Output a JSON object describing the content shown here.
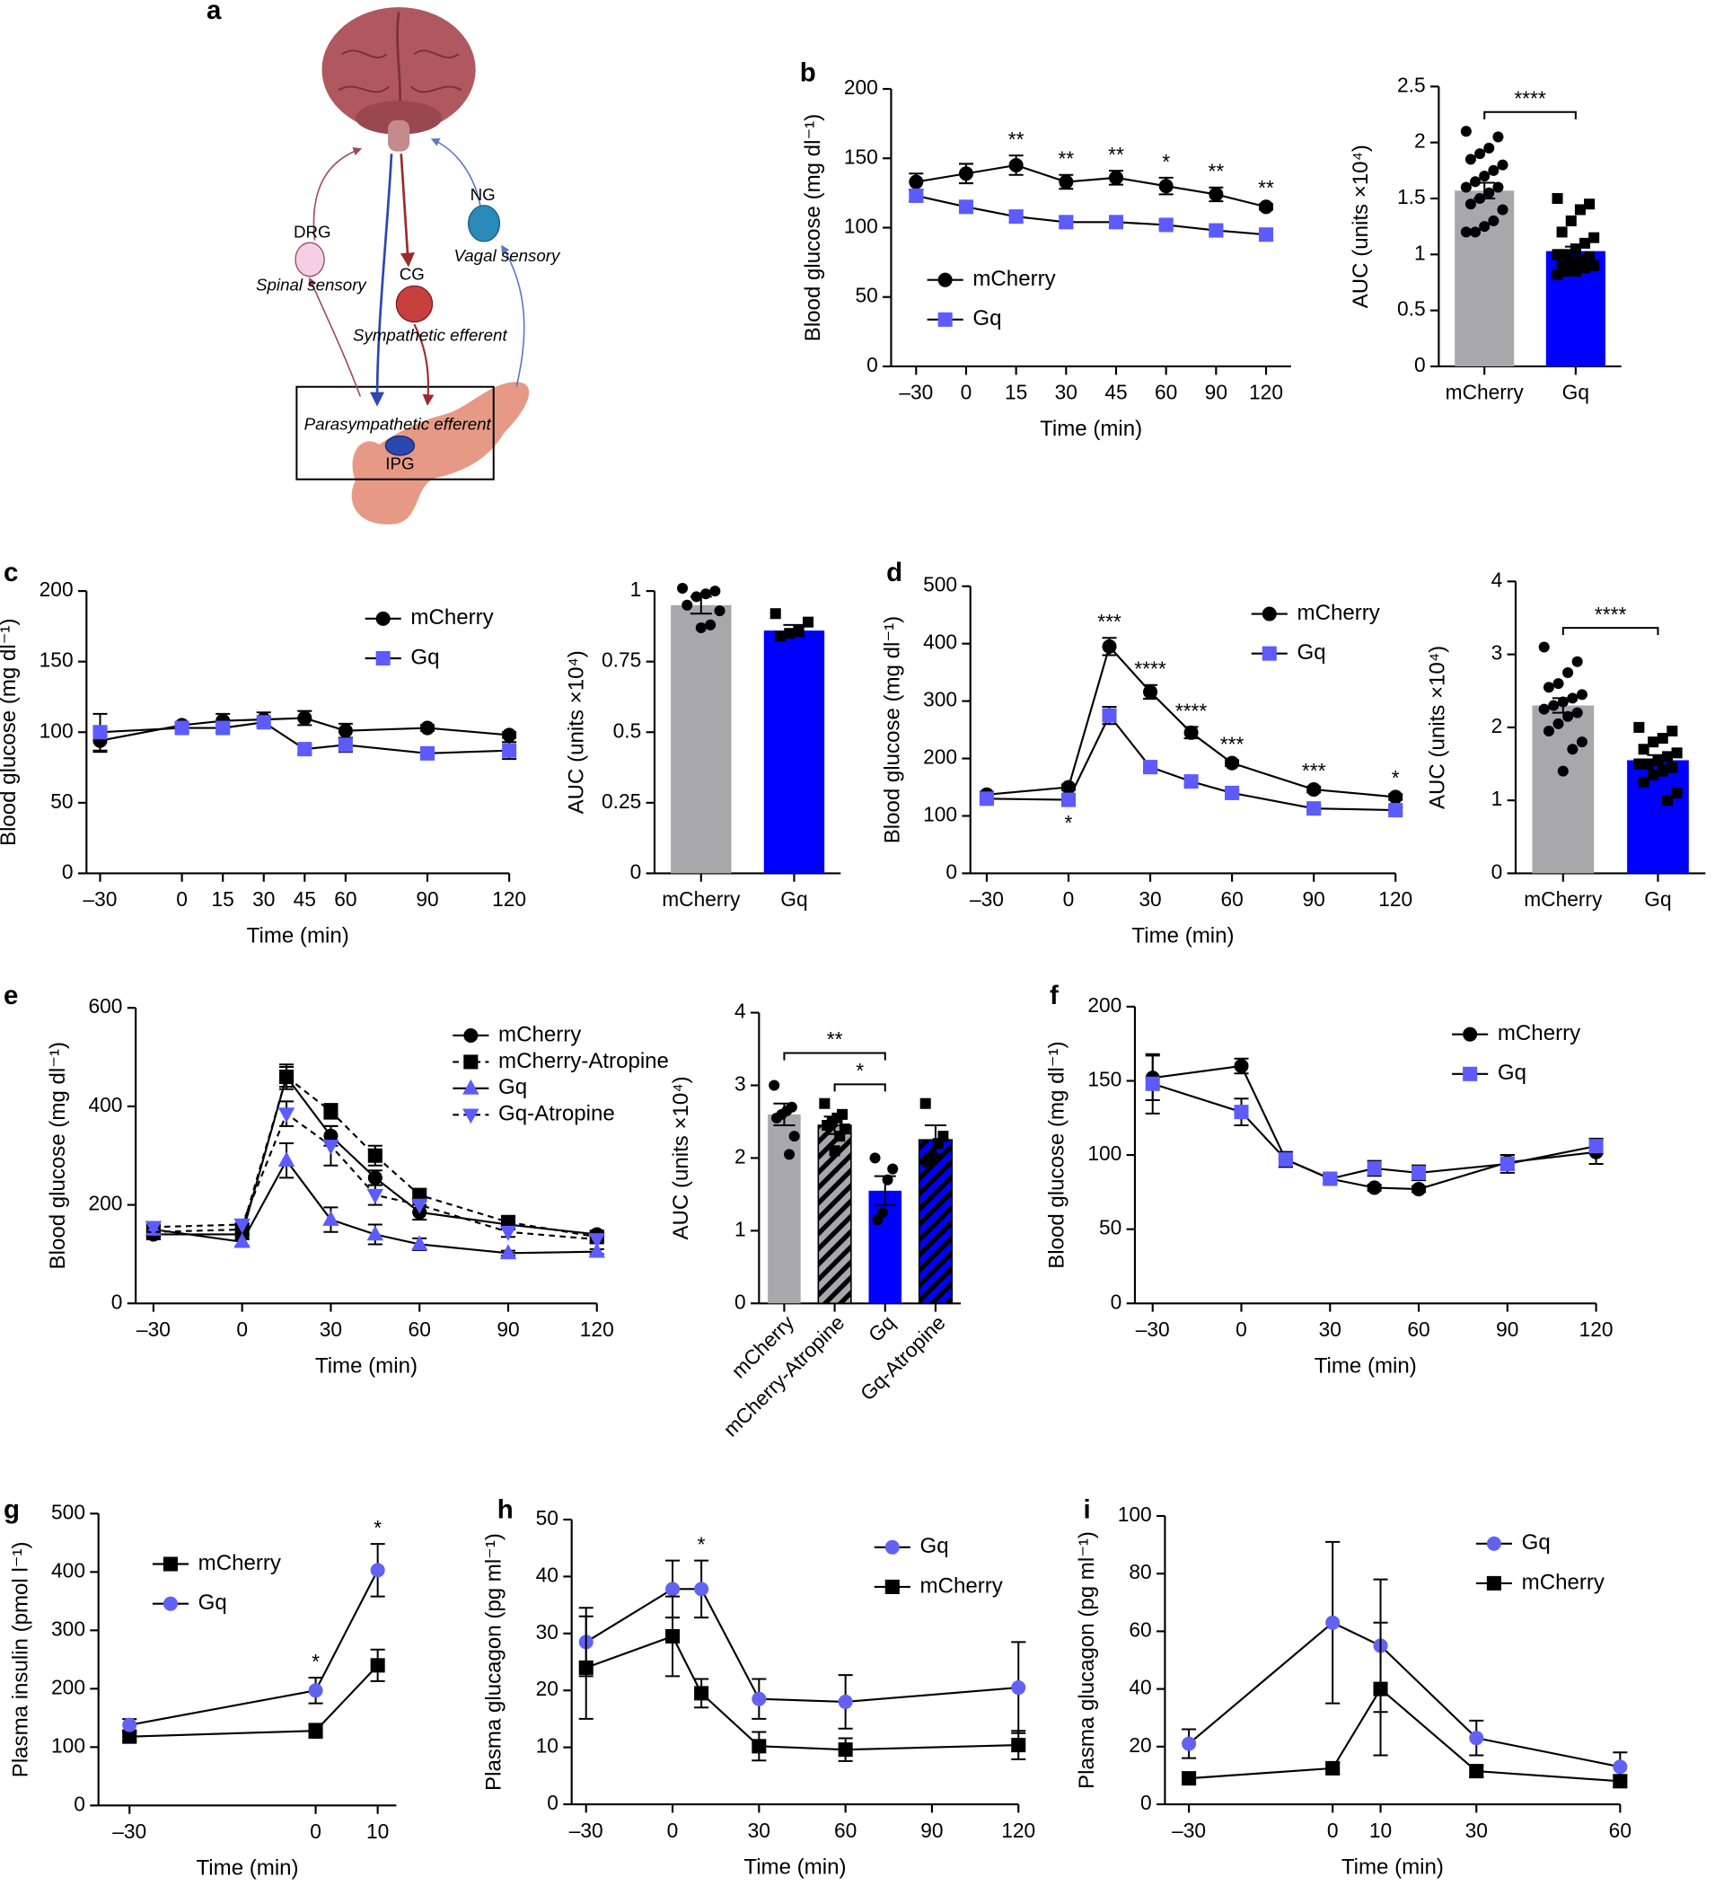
{
  "panels": [
    "a",
    "b",
    "c",
    "d",
    "e",
    "f",
    "g",
    "h",
    "i"
  ],
  "diagram": {
    "drg": "DRG",
    "spinal": "Spinal sensory",
    "cg": "CG",
    "sympathetic": "Sympathetic efferent",
    "ng": "NG",
    "vagal": "Vagal sensory",
    "parasympathetic": "Parasympathetic efferent",
    "ipg": "IPG"
  },
  "chart_data": [
    {
      "type": "line",
      "categories": [
        "–30",
        "0",
        "15",
        "30",
        "45",
        "60",
        "90",
        "120"
      ],
      "ylim": [
        0,
        200
      ],
      "yticks": [
        0,
        50,
        100,
        150,
        200
      ],
      "xlabel": "Time (min)",
      "ylabel": "Blood glucose (mg dl⁻¹)",
      "legend": "lower left",
      "series": [
        {
          "name": "mCherry",
          "color": "#000000",
          "marker": "circle",
          "values": [
            133,
            139,
            145,
            133,
            136,
            130,
            124,
            115
          ],
          "errors": [
            6,
            7,
            7,
            5,
            5,
            6,
            5,
            2
          ],
          "annotations": [
            null,
            null,
            "**",
            "**",
            "**",
            "*",
            "**",
            "**"
          ]
        },
        {
          "name": "Gq",
          "color": "#5b5bff",
          "marker": "square",
          "values": [
            123,
            115,
            108,
            104,
            104,
            102,
            98,
            95
          ],
          "errors": [
            4,
            3,
            4,
            4,
            3,
            3,
            3,
            2
          ]
        }
      ]
    },
    {
      "type": "bar",
      "categories": [
        "mCherry",
        "Gq"
      ],
      "values": [
        1.57,
        1.03
      ],
      "errors": [
        0.07,
        0.04
      ],
      "colors": [
        "#a8a8aa",
        "#0000ff"
      ],
      "point_markers": [
        "circle",
        "square"
      ],
      "points": [
        [
          2.1,
          2.05,
          1.95,
          1.9,
          1.85,
          1.8,
          1.75,
          1.7,
          1.65,
          1.6,
          1.6,
          1.55,
          1.5,
          1.45,
          1.4,
          1.3,
          1.25,
          1.2,
          1.2
        ],
        [
          1.5,
          1.45,
          1.4,
          1.3,
          1.2,
          1.15,
          1.1,
          1.05,
          1.0,
          1.0,
          0.98,
          0.95,
          0.93,
          0.9,
          0.9,
          0.88,
          0.85,
          0.85,
          0.82
        ]
      ],
      "ylim": [
        0,
        2.5
      ],
      "yticks": [
        0,
        0.5,
        1,
        1.5,
        2,
        2.5
      ],
      "ylabel": "AUC (units ×10⁴)",
      "brackets": [
        {
          "from": 0,
          "to": 1,
          "label": "****"
        }
      ]
    },
    {
      "type": "line",
      "x": [
        -30,
        0,
        15,
        30,
        45,
        60,
        90,
        120
      ],
      "xlim": [
        -35,
        120
      ],
      "xticks": [
        {
          "value": -30,
          "label": "–30"
        },
        0,
        15,
        30,
        45,
        60,
        90,
        120
      ],
      "ylim": [
        0,
        200
      ],
      "yticks": [
        0,
        50,
        100,
        150,
        200
      ],
      "xlabel": "Time (min)",
      "ylabel": "Blood glucose (mg dl⁻¹)",
      "legend": "upper right",
      "series": [
        {
          "name": "mCherry",
          "color": "#000000",
          "marker": "circle",
          "values": [
            94,
            105,
            108,
            109,
            110,
            101,
            103,
            98
          ],
          "errors": [
            8,
            2,
            5,
            5,
            5,
            5,
            2,
            2
          ]
        },
        {
          "name": "Gq",
          "color": "#5b5bff",
          "marker": "square",
          "values": [
            100,
            103,
            103,
            107,
            88,
            91,
            85,
            87
          ],
          "errors": [
            13,
            3,
            3,
            3,
            3,
            5,
            2,
            6
          ]
        }
      ]
    },
    {
      "type": "bar",
      "categories": [
        "mCherry",
        "Gq"
      ],
      "values": [
        0.95,
        0.86
      ],
      "errors": [
        0.03,
        0.02
      ],
      "colors": [
        "#a8a8aa",
        "#0000ff"
      ],
      "point_markers": [
        "circle",
        "square"
      ],
      "points": [
        [
          1.01,
          1.0,
          0.99,
          0.98,
          0.95,
          0.93,
          0.88,
          0.87
        ],
        [
          0.92,
          0.89,
          0.86,
          0.85,
          0.84
        ]
      ],
      "ylim": [
        0,
        1
      ],
      "yticks": [
        0,
        0.25,
        0.5,
        0.75,
        1
      ],
      "ylabel": "AUC (units ×10⁴)"
    },
    {
      "type": "line",
      "x": [
        -30,
        0,
        15,
        30,
        45,
        60,
        90,
        120
      ],
      "xlim": [
        -36,
        120
      ],
      "xticks": [
        {
          "value": -30,
          "label": "–30"
        },
        0,
        30,
        60,
        90,
        120
      ],
      "ylim": [
        0,
        500
      ],
      "yticks": [
        0,
        100,
        200,
        300,
        400,
        500
      ],
      "xlabel": "Time (min)",
      "ylabel": "Blood glucose (mg dl⁻¹)",
      "legend": "upper right",
      "series": [
        {
          "name": "mCherry",
          "color": "#000000",
          "marker": "circle",
          "values": [
            137,
            150,
            395,
            316,
            245,
            192,
            146,
            133
          ],
          "errors": [
            5,
            5,
            15,
            12,
            10,
            5,
            5,
            5
          ],
          "annotations": [
            null,
            null,
            "***",
            "****",
            "****",
            "***",
            "***",
            "*"
          ]
        },
        {
          "name": "Gq",
          "color": "#5b5bff",
          "marker": "square",
          "values": [
            130,
            128,
            275,
            185,
            160,
            140,
            113,
            110
          ],
          "errors": [
            5,
            5,
            15,
            8,
            5,
            5,
            5,
            5
          ],
          "annotations": [
            null,
            "*",
            null,
            null,
            null,
            null,
            null,
            null
          ],
          "annotation_position": "below"
        }
      ]
    },
    {
      "type": "bar",
      "categories": [
        "mCherry",
        "Gq"
      ],
      "values": [
        2.3,
        1.55
      ],
      "errors": [
        0.1,
        0.07
      ],
      "colors": [
        "#a8a8aa",
        "#0000ff"
      ],
      "point_markers": [
        "circle",
        "square"
      ],
      "points": [
        [
          3.1,
          2.9,
          2.75,
          2.6,
          2.55,
          2.45,
          2.4,
          2.35,
          2.3,
          2.25,
          2.2,
          2.15,
          2.05,
          1.95,
          1.8,
          1.7,
          1.4
        ],
        [
          2.0,
          1.95,
          1.85,
          1.8,
          1.7,
          1.65,
          1.6,
          1.55,
          1.5,
          1.5,
          1.45,
          1.4,
          1.35,
          1.25,
          1.1,
          1.0
        ]
      ],
      "ylim": [
        0,
        4
      ],
      "yticks": [
        0,
        1,
        2,
        3,
        4
      ],
      "ylabel": "AUC (units ×10⁴)",
      "brackets": [
        {
          "from": 0,
          "to": 1,
          "label": "****"
        }
      ]
    },
    {
      "type": "line",
      "x": [
        -30,
        0,
        15,
        30,
        45,
        60,
        90,
        120
      ],
      "xlim": [
        -36,
        120
      ],
      "xticks": [
        {
          "value": -30,
          "label": "–30"
        },
        0,
        30,
        60,
        90,
        120
      ],
      "ylim": [
        0,
        600
      ],
      "yticks": [
        0,
        200,
        400,
        600
      ],
      "xlabel": "Time (min)",
      "ylabel": "Blood glucose (mg dl⁻¹)",
      "legend": "upper right",
      "series": [
        {
          "name": "mCherry",
          "color": "#000000",
          "marker": "circle",
          "values": [
            140,
            140,
            460,
            340,
            255,
            185,
            160,
            140
          ],
          "errors": [
            10,
            10,
            20,
            20,
            15,
            15,
            10,
            5
          ]
        },
        {
          "name": "mCherry-Atropine",
          "color": "#000000",
          "marker": "square",
          "dash": true,
          "values": [
            145,
            150,
            460,
            390,
            300,
            220,
            165,
            135
          ],
          "errors": [
            10,
            10,
            25,
            15,
            20,
            12,
            10,
            8
          ]
        },
        {
          "name": "Gq",
          "color": "#5b5bff",
          "marker": "triangle-up",
          "values": [
            150,
            125,
            290,
            170,
            140,
            120,
            102,
            105
          ],
          "errors": [
            10,
            8,
            35,
            25,
            20,
            12,
            5,
            5
          ]
        },
        {
          "name": "Gq-Atropine",
          "color": "#5b5bff",
          "marker": "triangle-down",
          "dash": true,
          "values": [
            155,
            160,
            385,
            320,
            220,
            200,
            145,
            130
          ],
          "errors": [
            10,
            10,
            25,
            40,
            20,
            15,
            10,
            8
          ]
        }
      ]
    },
    {
      "type": "bar",
      "categories": [
        "mCherry",
        "mCherry-Atropine",
        "Gq",
        "Gq-Atropine"
      ],
      "values": [
        2.6,
        2.45,
        1.55,
        2.25
      ],
      "errors": [
        0.15,
        0.12,
        0.2,
        0.2
      ],
      "colors": [
        "#a8a8aa",
        "#a8a8aa",
        "#0000ff",
        "#0000ff"
      ],
      "patterns": [
        null,
        "hatch",
        null,
        "hatch"
      ],
      "point_markers": [
        "circle",
        "square",
        "circle",
        "square"
      ],
      "points": [
        [
          3.0,
          2.7,
          2.65,
          2.6,
          2.55,
          2.3,
          2.05
        ],
        [
          2.75,
          2.6,
          2.55,
          2.5,
          2.45,
          2.4,
          2.3,
          2.1
        ],
        [
          2.0,
          1.85,
          1.7,
          1.25,
          1.15
        ],
        [
          2.75,
          2.3,
          2.2,
          2.0,
          1.95
        ]
      ],
      "ylim": [
        0,
        4
      ],
      "yticks": [
        0,
        1,
        2,
        3,
        4
      ],
      "ylabel": "AUC (units ×10⁴)",
      "rotate_labels": true,
      "brackets": [
        {
          "from": 1,
          "to": 2,
          "label": "*"
        },
        {
          "from": 0,
          "to": 2,
          "label": "**"
        }
      ]
    },
    {
      "type": "line",
      "x": [
        -30,
        0,
        15,
        30,
        45,
        60,
        90,
        120
      ],
      "xlim": [
        -36,
        120
      ],
      "xticks": [
        {
          "value": -30,
          "label": "–30"
        },
        0,
        30,
        60,
        90,
        120
      ],
      "ylim": [
        0,
        200
      ],
      "yticks": [
        0,
        50,
        100,
        150,
        200
      ],
      "xlabel": "Time (min)",
      "ylabel": "Blood glucose (mg dl⁻¹)",
      "legend": "upper right",
      "series": [
        {
          "name": "mCherry",
          "color": "#000000",
          "marker": "circle",
          "values": [
            152,
            160,
            97,
            84,
            78,
            77,
            95,
            102
          ],
          "errors": [
            15,
            5,
            5,
            3,
            2,
            2,
            5,
            8
          ]
        },
        {
          "name": "Gq",
          "color": "#5b5bff",
          "marker": "square",
          "values": [
            148,
            129,
            97,
            84,
            91,
            88,
            94,
            106
          ],
          "errors": [
            20,
            9,
            5,
            3,
            5,
            5,
            6,
            5
          ]
        }
      ]
    },
    {
      "type": "line",
      "x": [
        -30,
        0,
        10
      ],
      "xlim": [
        -35,
        13
      ],
      "xticks": [
        {
          "value": -30,
          "label": "–30"
        },
        0,
        10
      ],
      "ylim": [
        0,
        500
      ],
      "yticks": [
        0,
        100,
        200,
        300,
        400,
        500
      ],
      "xlabel": "Time (min)",
      "ylabel": "Plasma insulin (pmol l⁻¹)",
      "legend": "upper left",
      "series": [
        {
          "name": "mCherry",
          "color": "#000000",
          "marker": "square",
          "values": [
            118,
            128,
            240
          ],
          "errors": [
            8,
            12,
            27
          ]
        },
        {
          "name": "Gq",
          "color": "#6262f0",
          "marker": "circle",
          "values": [
            138,
            197,
            403
          ],
          "errors": [
            10,
            22,
            45
          ],
          "annotations": [
            null,
            "*",
            "*"
          ]
        }
      ]
    },
    {
      "type": "line",
      "x": [
        -30,
        0,
        10,
        30,
        60,
        120
      ],
      "xlim": [
        -35,
        120
      ],
      "xticks": [
        {
          "value": -30,
          "label": "–30"
        },
        0,
        30,
        60,
        90,
        120
      ],
      "ylim": [
        0,
        50
      ],
      "yticks": [
        0,
        10,
        20,
        30,
        40,
        50
      ],
      "xlabel": "Time (min)",
      "ylabel": "Plasma glucagon (pg ml⁻¹)",
      "legend": "upper right",
      "series": [
        {
          "name": "Gq",
          "color": "#6262f0",
          "marker": "circle",
          "values": [
            28.5,
            37.8,
            37.8,
            18.5,
            18,
            20.5
          ],
          "errors": [
            6,
            5,
            5,
            3.5,
            4.7,
            8
          ],
          "annotations": [
            null,
            null,
            "*",
            null,
            null,
            null
          ]
        },
        {
          "name": "mCherry",
          "color": "#000000",
          "marker": "square",
          "values": [
            24,
            29.5,
            19.5,
            10.2,
            9.6,
            10.4
          ],
          "errors": [
            9,
            7,
            2.5,
            2.5,
            2,
            2.5
          ]
        }
      ]
    },
    {
      "type": "line",
      "x": [
        -30,
        0,
        10,
        30,
        60
      ],
      "xlim": [
        -35,
        60
      ],
      "xticks": [
        {
          "value": -30,
          "label": "–30"
        },
        0,
        10,
        30,
        60
      ],
      "ylim": [
        0,
        100
      ],
      "yticks": [
        0,
        20,
        40,
        60,
        80,
        100
      ],
      "xlabel": "Time (min)",
      "ylabel": "Plasma glucagon (pg ml⁻¹)",
      "legend": "upper right",
      "series": [
        {
          "name": "Gq",
          "color": "#6262f0",
          "marker": "circle",
          "values": [
            21,
            63,
            55,
            23,
            13
          ],
          "errors": [
            5,
            28,
            23,
            6,
            5
          ]
        },
        {
          "name": "mCherry",
          "color": "#000000",
          "marker": "square",
          "values": [
            9,
            12.5,
            40,
            11.5,
            8
          ],
          "errors": [
            2,
            2,
            23,
            2,
            2
          ]
        }
      ]
    }
  ]
}
